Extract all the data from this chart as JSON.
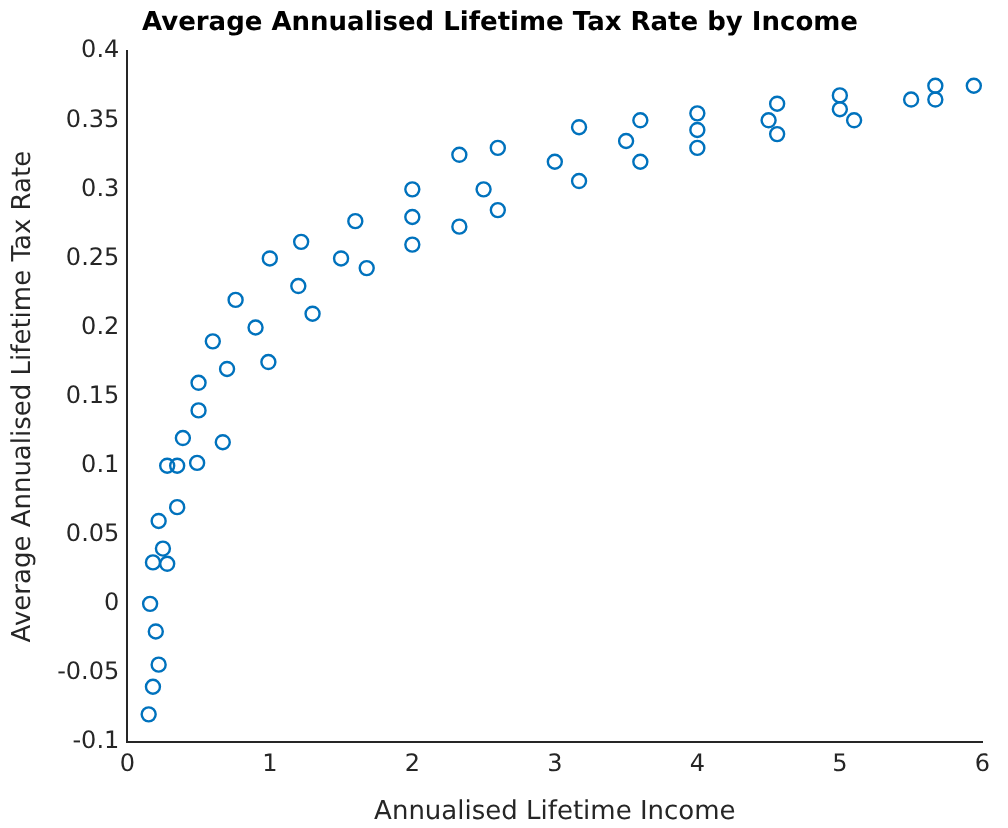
{
  "chart_data": {
    "type": "scatter",
    "title": "Average Annualised Lifetime Tax Rate by Income",
    "xlabel": "Annualised Lifetime Income",
    "ylabel": "Average Annualised Lifetime Tax Rate",
    "marker": "circle",
    "grid": false,
    "legend": false,
    "xlim": [
      0,
      6
    ],
    "xticks": [
      0,
      1,
      2,
      3,
      4,
      5,
      6
    ],
    "ylim": [
      -0.1,
      0.4
    ],
    "yticks": [
      -0.1,
      -0.05,
      0,
      0.05,
      0.1,
      0.15,
      0.2,
      0.25,
      0.3,
      0.35,
      0.4
    ],
    "series": [
      {
        "color": "#0072bd",
        "x": [
          0.15,
          0.16,
          0.18,
          0.22,
          0.28,
          0.39,
          0.5,
          0.6,
          0.76,
          1.0,
          1.22,
          1.6,
          2.0,
          2.33,
          2.6,
          3.17,
          3.6,
          4.0,
          4.56,
          5.0,
          5.67,
          5.94,
          0.18,
          0.22,
          0.28,
          0.35,
          0.49,
          0.67,
          0.99,
          1.3,
          1.68,
          2.0,
          2.33,
          2.6,
          3.17,
          3.6,
          4.0,
          4.56,
          5.1,
          5.67,
          0.2,
          0.25,
          0.35,
          0.5,
          0.7,
          0.9,
          1.2,
          1.5,
          2.0,
          2.5,
          3.0,
          3.5,
          4.0,
          4.5,
          5.0,
          5.5
        ],
        "values": [
          -0.08,
          0.0,
          0.03,
          0.06,
          0.1,
          0.12,
          0.16,
          0.19,
          0.22,
          0.25,
          0.262,
          0.277,
          0.3,
          0.325,
          0.33,
          0.345,
          0.35,
          0.355,
          0.362,
          0.368,
          0.375,
          0.375,
          -0.06,
          -0.044,
          0.029,
          0.07,
          0.102,
          0.117,
          0.175,
          0.21,
          0.243,
          0.26,
          0.273,
          0.285,
          0.306,
          0.32,
          0.33,
          0.34,
          0.35,
          0.365,
          -0.02,
          0.04,
          0.1,
          0.14,
          0.17,
          0.2,
          0.23,
          0.25,
          0.28,
          0.3,
          0.32,
          0.335,
          0.343,
          0.35,
          0.358,
          0.365
        ]
      }
    ]
  }
}
